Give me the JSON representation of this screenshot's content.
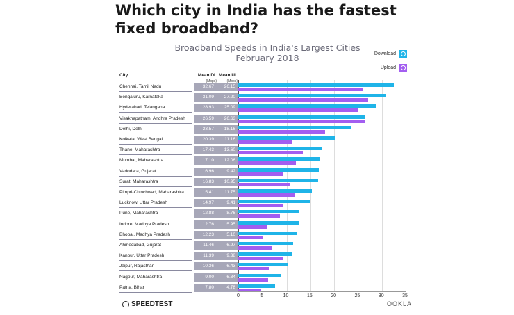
{
  "headline": "Which city in India has the fastest fixed broadband?",
  "chart_title_line1": "Broadband Speeds in India's Largest Cities",
  "chart_title_line2": "February 2018",
  "legend": {
    "download": {
      "label": "Download",
      "color": "#1fb4e8"
    },
    "upload": {
      "label": "Upload",
      "color": "#a35ef0"
    }
  },
  "table_headers": {
    "city": "City",
    "mean_dl": "Mean DL",
    "mean_dl_unit": "(Mbps)",
    "mean_ul": "Mean UL",
    "mean_ul_unit": "(Mbps)"
  },
  "footer": {
    "left_brand": "SPEEDTEST",
    "right_brand": "OOKLA"
  },
  "chart_data": {
    "type": "bar",
    "orientation": "horizontal",
    "title": "Broadband Speeds in India's Largest Cities — February 2018",
    "xlabel": "",
    "ylabel": "City",
    "xlim": [
      0,
      35
    ],
    "xticks": [
      0,
      5,
      10,
      15,
      20,
      25,
      30,
      35
    ],
    "grid": true,
    "legend_position": "top-right",
    "categories": [
      "Chennai, Tamil Nadu",
      "Bengaluru, Karnataka",
      "Hyderabad, Telangana",
      "Visakhapatnam, Andhra Pradesh",
      "Delhi, Delhi",
      "Kolkata, West Bengal",
      "Thane, Maharashtra",
      "Mumbai, Maharashtra",
      "Vadodara, Gujarat",
      "Surat, Maharashtra",
      "Pimpri-Chinchwad, Maharashtra",
      "Lucknow, Uttar Pradesh",
      "Pune, Maharashtra",
      "Indore, Madhya Pradesh",
      "Bhopal, Madhya Pradesh",
      "Ahmedabad, Gujarat",
      "Kanpur, Uttar Pradesh",
      "Jaipur, Rajasthan",
      "Nagpur, Maharashtra",
      "Patna, Bihar"
    ],
    "series": [
      {
        "name": "Download",
        "color": "#1fb4e8",
        "values": [
          "32.67",
          "31.09",
          "28.93",
          "26.59",
          "23.57",
          "20.39",
          "17.43",
          "17.10",
          "16.96",
          "16.83",
          "15.41",
          "14.97",
          "12.88",
          "12.76",
          "12.23",
          "11.46",
          "11.39",
          "10.36",
          "9.00",
          "7.80"
        ]
      },
      {
        "name": "Upload",
        "color": "#a35ef0",
        "values": [
          "26.15",
          "27.20",
          "25.09",
          "26.63",
          "18.16",
          "11.16",
          "13.60",
          "12.06",
          "9.42",
          "10.95",
          "11.75",
          "9.41",
          "8.76",
          "5.95",
          "5.10",
          "6.97",
          "9.38",
          "6.43",
          "6.34",
          "4.78"
        ]
      }
    ]
  }
}
